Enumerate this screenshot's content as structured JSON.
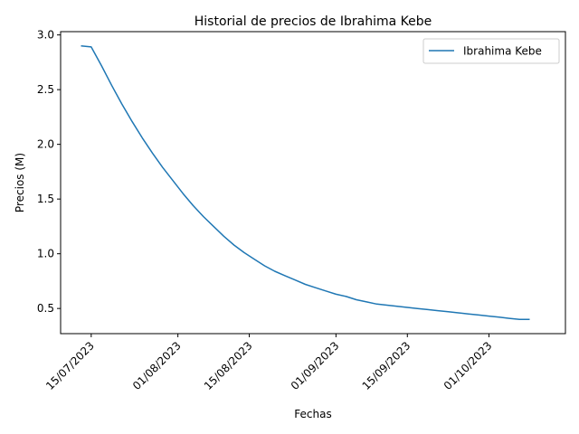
{
  "chart_data": {
    "type": "line",
    "title": "Historial de precios de Ibrahima Kebe",
    "xlabel": "Fechas",
    "ylabel": "Precios (M)",
    "x_is_date": true,
    "xticks": [
      "15/07/2023",
      "01/08/2023",
      "15/08/2023",
      "01/09/2023",
      "15/09/2023",
      "01/10/2023"
    ],
    "xtick_dates": [
      "2023-07-15",
      "2023-08-01",
      "2023-08-15",
      "2023-09-01",
      "2023-09-15",
      "2023-10-01"
    ],
    "yticks": [
      "0.5",
      "1.0",
      "1.5",
      "2.0",
      "2.5",
      "3.0"
    ],
    "xlim": [
      "2023-07-09",
      "2023-10-16"
    ],
    "ylim": [
      0.27,
      3.03
    ],
    "grid": false,
    "legend_position": "top-right",
    "line_color": "#1f77b4",
    "series": [
      {
        "name": "Ibrahima Kebe",
        "x": [
          "2023-07-13",
          "2023-07-15",
          "2023-07-17",
          "2023-07-19",
          "2023-07-21",
          "2023-07-23",
          "2023-07-25",
          "2023-07-27",
          "2023-07-29",
          "2023-07-31",
          "2023-08-02",
          "2023-08-04",
          "2023-08-06",
          "2023-08-08",
          "2023-08-10",
          "2023-08-12",
          "2023-08-14",
          "2023-08-16",
          "2023-08-18",
          "2023-08-20",
          "2023-08-22",
          "2023-08-24",
          "2023-08-26",
          "2023-08-28",
          "2023-08-30",
          "2023-09-01",
          "2023-09-03",
          "2023-09-05",
          "2023-09-07",
          "2023-09-09",
          "2023-09-11",
          "2023-09-13",
          "2023-09-15",
          "2023-09-17",
          "2023-09-19",
          "2023-09-21",
          "2023-09-23",
          "2023-09-25",
          "2023-09-27",
          "2023-09-29",
          "2023-10-01",
          "2023-10-03",
          "2023-10-05",
          "2023-10-07",
          "2023-10-09"
        ],
        "y": [
          2.9,
          2.89,
          2.72,
          2.54,
          2.37,
          2.21,
          2.06,
          1.92,
          1.79,
          1.67,
          1.55,
          1.44,
          1.34,
          1.25,
          1.16,
          1.08,
          1.01,
          0.95,
          0.89,
          0.84,
          0.8,
          0.76,
          0.72,
          0.69,
          0.66,
          0.63,
          0.61,
          0.58,
          0.56,
          0.54,
          0.53,
          0.52,
          0.51,
          0.5,
          0.49,
          0.48,
          0.47,
          0.46,
          0.45,
          0.44,
          0.43,
          0.42,
          0.41,
          0.4,
          0.4
        ]
      }
    ]
  }
}
